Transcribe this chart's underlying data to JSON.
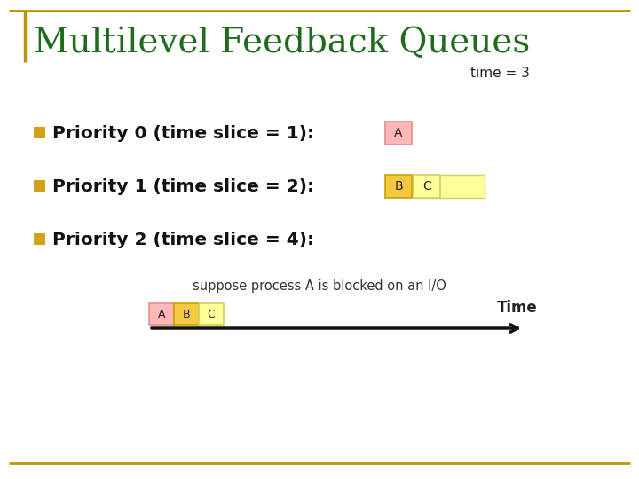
{
  "title": "Multilevel Feedback Queues",
  "title_color": "#1e6b1e",
  "title_fontsize": 28,
  "time_label": "time = 3",
  "background_color": "#ffffff",
  "border_color": "#b8960c",
  "bullet_color": "#d4a017",
  "priorities": [
    {
      "text": "Priority 0 (time slice = 1):",
      "boxes": [
        {
          "label": "A",
          "color": "#ffb8b8",
          "border": "#e09090"
        }
      ]
    },
    {
      "text": "Priority 1 (time slice = 2):",
      "boxes": [
        {
          "label": "B",
          "color": "#f5c842",
          "border": "#c8a000"
        },
        {
          "label": "C",
          "color": "#ffff99",
          "border": "#d0d060"
        }
      ]
    },
    {
      "text": "Priority 2 (time slice = 4):",
      "boxes": []
    }
  ],
  "note": "suppose process A is blocked on an I/O",
  "timeline_boxes": [
    {
      "label": "A",
      "color": "#ffb8b8",
      "border": "#e09090"
    },
    {
      "label": "B",
      "color": "#f5c842",
      "border": "#c8a000"
    },
    {
      "label": "C",
      "color": "#ffff99",
      "border": "#d0d060"
    }
  ],
  "time_label_arrow": "Time"
}
